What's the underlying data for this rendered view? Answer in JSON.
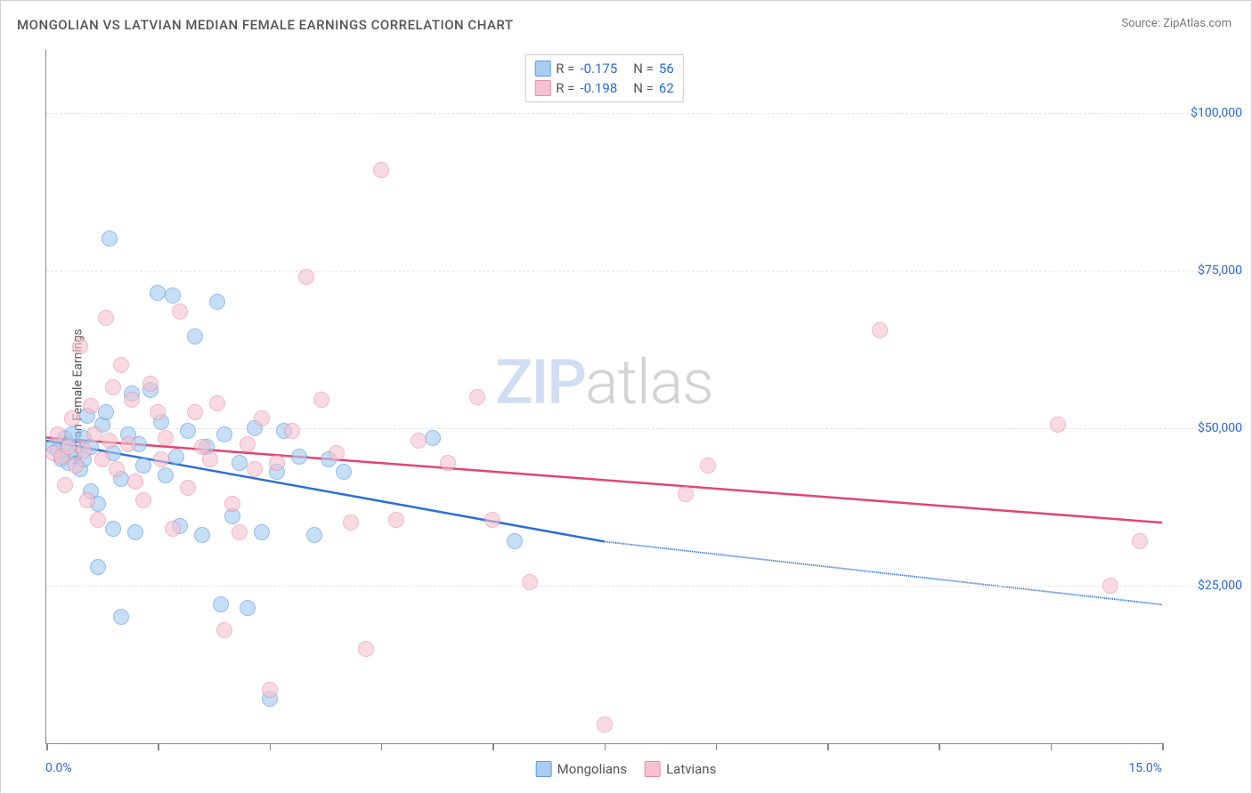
{
  "title": "MONGOLIAN VS LATVIAN MEDIAN FEMALE EARNINGS CORRELATION CHART",
  "source": "Source: ZipAtlas.com",
  "y_axis_title": "Median Female Earnings",
  "x_min_label": "0.0%",
  "x_max_label": "15.0%",
  "watermark_a": "ZIP",
  "watermark_b": "atlas",
  "axes": {
    "x_min": 0,
    "x_max": 15,
    "y_min": 0,
    "y_max": 110000,
    "y_ticks": [
      25000,
      50000,
      75000,
      100000
    ],
    "y_tick_labels": [
      "$25,000",
      "$50,000",
      "$75,000",
      "$100,000"
    ],
    "x_ticks": [
      0,
      1.5,
      3,
      4.5,
      6,
      7.5,
      9,
      10.5,
      12,
      13.5,
      15
    ],
    "grid_color": "#e5e5e5",
    "axis_color": "#888888",
    "tick_label_color": "#2968d8"
  },
  "series": [
    {
      "name": "Mongolians",
      "fill": "#a9cdf2",
      "stroke": "#5b9ce2",
      "line_color": "#2d6fd6",
      "marker_radius": 9,
      "marker_opacity": 0.65,
      "stats": {
        "R": "-0.175",
        "N": "56"
      },
      "trend": {
        "x1": 0,
        "y1": 48000,
        "x2": 7.5,
        "y2": 32000,
        "x_dash_to": 15,
        "y_dash_to": 22000
      },
      "points": [
        [
          0.1,
          47000
        ],
        [
          0.15,
          46500
        ],
        [
          0.2,
          45000
        ],
        [
          0.25,
          48500
        ],
        [
          0.3,
          47500
        ],
        [
          0.3,
          44500
        ],
        [
          0.35,
          49000
        ],
        [
          0.4,
          46000
        ],
        [
          0.45,
          43500
        ],
        [
          0.5,
          48500
        ],
        [
          0.5,
          45000
        ],
        [
          0.55,
          52000
        ],
        [
          0.6,
          47000
        ],
        [
          0.6,
          40000
        ],
        [
          0.7,
          28000
        ],
        [
          0.7,
          38000
        ],
        [
          0.75,
          50500
        ],
        [
          0.8,
          52500
        ],
        [
          0.85,
          80000
        ],
        [
          0.9,
          46000
        ],
        [
          0.9,
          34000
        ],
        [
          1.0,
          20000
        ],
        [
          1.0,
          42000
        ],
        [
          1.1,
          49000
        ],
        [
          1.15,
          55500
        ],
        [
          1.2,
          33500
        ],
        [
          1.25,
          47500
        ],
        [
          1.3,
          44000
        ],
        [
          1.4,
          56000
        ],
        [
          1.5,
          71500
        ],
        [
          1.55,
          51000
        ],
        [
          1.6,
          42500
        ],
        [
          1.7,
          71000
        ],
        [
          1.75,
          45500
        ],
        [
          1.8,
          34500
        ],
        [
          1.9,
          49500
        ],
        [
          2.0,
          64500
        ],
        [
          2.1,
          33000
        ],
        [
          2.15,
          47000
        ],
        [
          2.3,
          70000
        ],
        [
          2.35,
          22000
        ],
        [
          2.4,
          49000
        ],
        [
          2.5,
          36000
        ],
        [
          2.6,
          44500
        ],
        [
          2.7,
          21500
        ],
        [
          2.8,
          50000
        ],
        [
          2.9,
          33500
        ],
        [
          3.0,
          7000
        ],
        [
          3.1,
          43000
        ],
        [
          3.2,
          49500
        ],
        [
          3.4,
          45500
        ],
        [
          3.6,
          33000
        ],
        [
          3.8,
          45000
        ],
        [
          4.0,
          43000
        ],
        [
          5.2,
          48500
        ],
        [
          6.3,
          32000
        ]
      ]
    },
    {
      "name": "Latvians",
      "fill": "#f6c2cf",
      "stroke": "#e98aa5",
      "line_color": "#e2456f",
      "marker_radius": 9,
      "marker_opacity": 0.6,
      "stats": {
        "R": "-0.198",
        "N": "62"
      },
      "trend": {
        "x1": 0,
        "y1": 48500,
        "x2": 15,
        "y2": 35000,
        "x_dash_to": null,
        "y_dash_to": null
      },
      "points": [
        [
          0.1,
          46000
        ],
        [
          0.15,
          49000
        ],
        [
          0.2,
          45500
        ],
        [
          0.25,
          41000
        ],
        [
          0.3,
          47000
        ],
        [
          0.35,
          51500
        ],
        [
          0.4,
          44000
        ],
        [
          0.45,
          63000
        ],
        [
          0.5,
          46500
        ],
        [
          0.55,
          38500
        ],
        [
          0.6,
          53500
        ],
        [
          0.65,
          49000
        ],
        [
          0.7,
          35500
        ],
        [
          0.75,
          45000
        ],
        [
          0.8,
          67500
        ],
        [
          0.85,
          48000
        ],
        [
          0.9,
          56500
        ],
        [
          0.95,
          43500
        ],
        [
          1.0,
          60000
        ],
        [
          1.1,
          47500
        ],
        [
          1.15,
          54500
        ],
        [
          1.2,
          41500
        ],
        [
          1.3,
          38500
        ],
        [
          1.4,
          57000
        ],
        [
          1.5,
          52500
        ],
        [
          1.55,
          45000
        ],
        [
          1.6,
          48500
        ],
        [
          1.7,
          34000
        ],
        [
          1.8,
          68500
        ],
        [
          1.9,
          40500
        ],
        [
          2.0,
          52500
        ],
        [
          2.1,
          47000
        ],
        [
          2.2,
          45000
        ],
        [
          2.3,
          54000
        ],
        [
          2.4,
          18000
        ],
        [
          2.5,
          38000
        ],
        [
          2.6,
          33500
        ],
        [
          2.7,
          47500
        ],
        [
          2.8,
          43500
        ],
        [
          2.9,
          51500
        ],
        [
          3.0,
          8500
        ],
        [
          3.1,
          44500
        ],
        [
          3.3,
          49500
        ],
        [
          3.5,
          74000
        ],
        [
          3.7,
          54500
        ],
        [
          3.9,
          46000
        ],
        [
          4.1,
          35000
        ],
        [
          4.3,
          15000
        ],
        [
          4.5,
          91000
        ],
        [
          4.7,
          35500
        ],
        [
          5.0,
          48000
        ],
        [
          5.4,
          44500
        ],
        [
          5.8,
          55000
        ],
        [
          6.0,
          35500
        ],
        [
          6.5,
          25500
        ],
        [
          7.5,
          3000
        ],
        [
          8.6,
          39500
        ],
        [
          8.9,
          44000
        ],
        [
          11.2,
          65500
        ],
        [
          13.6,
          50500
        ],
        [
          14.3,
          25000
        ],
        [
          14.7,
          32000
        ]
      ]
    }
  ],
  "legend_top": {
    "R_label": "R =",
    "N_label": "N ="
  },
  "legend_bottom": [
    {
      "label": "Mongolians",
      "fill": "#a9cdf2",
      "stroke": "#5b9ce2"
    },
    {
      "label": "Latvians",
      "fill": "#f6c2cf",
      "stroke": "#e98aa5"
    }
  ]
}
